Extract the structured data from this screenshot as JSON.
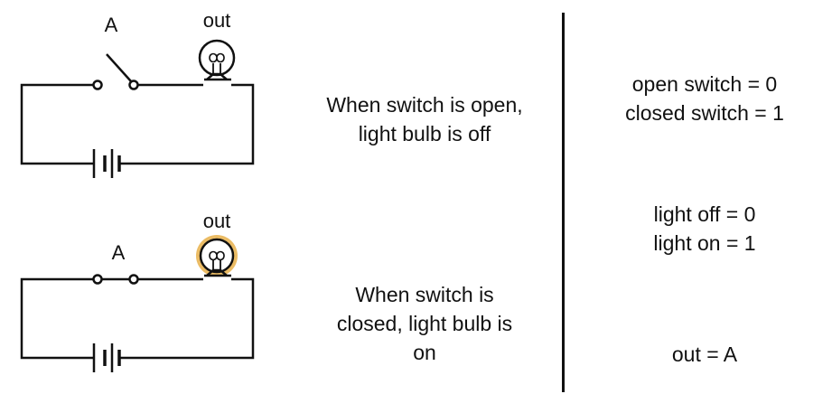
{
  "circuit_top": {
    "switch_label": "A",
    "bulb_label": "out",
    "switch_state": "open",
    "bulb_state": "off",
    "description": "When switch is open,\nlight bulb is off"
  },
  "circuit_bottom": {
    "switch_label": "A",
    "bulb_label": "out",
    "switch_state": "closed",
    "bulb_state": "on",
    "description": "When switch is\nclosed, light bulb is\non"
  },
  "encoding": {
    "switch_text": "open switch = 0\nclosed switch = 1",
    "light_text": "light off = 0\nlight on = 1",
    "equation": "out = A"
  },
  "colors": {
    "line": "#111111",
    "bulb_glow": "#e8b04a"
  }
}
